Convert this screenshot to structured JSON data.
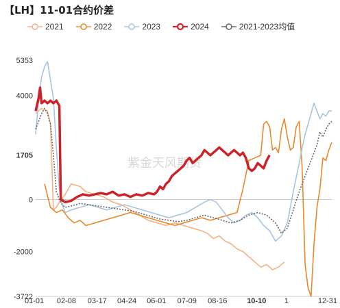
{
  "title": "【LH】11-01合约价差",
  "watermark": "紫金天风期货",
  "colors": {
    "s2021": "#f4b183",
    "s2022": "#e8892b",
    "s2023": "#a9c4dd",
    "s2024": "#cc2229",
    "avg": "#666666",
    "highlight": "#cc2229"
  },
  "chart_data": {
    "type": "line",
    "title": "【LH】11-01合约价差",
    "xlabel": "",
    "ylabel": "",
    "ylim": [
      -3722,
      5353
    ],
    "y_ticks": [
      {
        "value": 5353,
        "label": "5353"
      },
      {
        "value": 4000,
        "label": "4000"
      },
      {
        "value": 1705,
        "label": "1705",
        "highlight": true
      },
      {
        "value": 0,
        "label": "0"
      },
      {
        "value": -2000,
        "label": "-2000"
      },
      {
        "value": -3722,
        "label": "-3722"
      }
    ],
    "x_ticks": [
      {
        "pos": 0.0,
        "label": "01-01"
      },
      {
        "pos": 0.104,
        "label": "02-08"
      },
      {
        "pos": 0.208,
        "label": "03-17"
      },
      {
        "pos": 0.308,
        "label": "04-24"
      },
      {
        "pos": 0.408,
        "label": "06-01"
      },
      {
        "pos": 0.511,
        "label": "07-09"
      },
      {
        "pos": 0.614,
        "label": "08-16"
      },
      {
        "pos": 0.746,
        "label": "10-10",
        "highlight": true
      },
      {
        "pos": 0.847,
        "label": "1"
      },
      {
        "pos": 1.0,
        "label": "12-31"
      }
    ],
    "legend_position": "top",
    "series": [
      {
        "name": "2021",
        "key": "s2021",
        "points": [
          [
            0.0,
            3300
          ],
          [
            0.02,
            3500
          ],
          [
            0.04,
            3400
          ],
          [
            0.05,
            2900
          ],
          [
            0.06,
            -400
          ],
          [
            0.07,
            -300
          ],
          [
            0.08,
            -100
          ],
          [
            0.1,
            200
          ],
          [
            0.12,
            600
          ],
          [
            0.15,
            500
          ],
          [
            0.17,
            300
          ],
          [
            0.2,
            200
          ],
          [
            0.23,
            100
          ],
          [
            0.26,
            -100
          ],
          [
            0.29,
            -200
          ],
          [
            0.32,
            -400
          ],
          [
            0.35,
            -600
          ],
          [
            0.38,
            -800
          ],
          [
            0.41,
            -900
          ],
          [
            0.44,
            -1000
          ],
          [
            0.47,
            -900
          ],
          [
            0.5,
            -1000
          ],
          [
            0.53,
            -1100
          ],
          [
            0.56,
            -1200
          ],
          [
            0.58,
            -1300
          ],
          [
            0.6,
            -1500
          ],
          [
            0.62,
            -1400
          ],
          [
            0.64,
            -1600
          ],
          [
            0.66,
            -1700
          ],
          [
            0.68,
            -1900
          ],
          [
            0.7,
            -2000
          ],
          [
            0.72,
            -2200
          ],
          [
            0.74,
            -2400
          ],
          [
            0.76,
            -2600
          ],
          [
            0.78,
            -2500
          ],
          [
            0.8,
            -2700
          ],
          [
            0.82,
            -2600
          ],
          [
            0.84,
            -2400
          ]
        ]
      },
      {
        "name": "2022",
        "key": "s2022",
        "points": [
          [
            0.03,
            600
          ],
          [
            0.05,
            -300
          ],
          [
            0.07,
            -500
          ],
          [
            0.09,
            -400
          ],
          [
            0.11,
            -700
          ],
          [
            0.13,
            -900
          ],
          [
            0.15,
            -800
          ],
          [
            0.17,
            -1000
          ],
          [
            0.2,
            -900
          ],
          [
            0.23,
            -800
          ],
          [
            0.26,
            -700
          ],
          [
            0.29,
            -600
          ],
          [
            0.32,
            -500
          ],
          [
            0.35,
            -600
          ],
          [
            0.38,
            -700
          ],
          [
            0.41,
            -800
          ],
          [
            0.44,
            -900
          ],
          [
            0.47,
            -1000
          ],
          [
            0.5,
            -900
          ],
          [
            0.53,
            -800
          ],
          [
            0.56,
            -700
          ],
          [
            0.59,
            -800
          ],
          [
            0.62,
            -700
          ],
          [
            0.65,
            -600
          ],
          [
            0.68,
            -500
          ],
          [
            0.7,
            400
          ],
          [
            0.72,
            1500
          ],
          [
            0.74,
            1600
          ],
          [
            0.76,
            1700
          ],
          [
            0.77,
            2900
          ],
          [
            0.78,
            3000
          ],
          [
            0.79,
            2800
          ],
          [
            0.8,
            1900
          ],
          [
            0.81,
            2000
          ],
          [
            0.82,
            1800
          ],
          [
            0.83,
            2700
          ],
          [
            0.84,
            3100
          ],
          [
            0.85,
            2400
          ],
          [
            0.86,
            1900
          ],
          [
            0.87,
            2000
          ],
          [
            0.88,
            2800
          ],
          [
            0.89,
            3000
          ],
          [
            0.9,
            1200
          ],
          [
            0.91,
            -2500
          ],
          [
            0.92,
            -3400
          ],
          [
            0.93,
            -3722
          ],
          [
            0.94,
            -1700
          ],
          [
            0.95,
            -300
          ],
          [
            0.96,
            400
          ],
          [
            0.97,
            1600
          ],
          [
            0.98,
            1500
          ],
          [
            0.99,
            1900
          ],
          [
            1.0,
            2200
          ]
        ]
      },
      {
        "name": "2023",
        "key": "s2023",
        "points": [
          [
            0.0,
            2500
          ],
          [
            0.01,
            3800
          ],
          [
            0.02,
            4700
          ],
          [
            0.03,
            5100
          ],
          [
            0.04,
            5300
          ],
          [
            0.05,
            4600
          ],
          [
            0.06,
            3900
          ],
          [
            0.07,
            2000
          ],
          [
            0.08,
            400
          ],
          [
            0.09,
            -200
          ],
          [
            0.1,
            -500
          ],
          [
            0.12,
            -400
          ],
          [
            0.15,
            -300
          ],
          [
            0.18,
            -200
          ],
          [
            0.21,
            -300
          ],
          [
            0.24,
            -400
          ],
          [
            0.27,
            -300
          ],
          [
            0.3,
            -200
          ],
          [
            0.33,
            -300
          ],
          [
            0.36,
            -400
          ],
          [
            0.39,
            -500
          ],
          [
            0.42,
            -600
          ],
          [
            0.45,
            -700
          ],
          [
            0.48,
            -600
          ],
          [
            0.51,
            -500
          ],
          [
            0.54,
            -300
          ],
          [
            0.57,
            -100
          ],
          [
            0.59,
            0
          ],
          [
            0.61,
            -100
          ],
          [
            0.63,
            -400
          ],
          [
            0.65,
            -700
          ],
          [
            0.67,
            -900
          ],
          [
            0.69,
            -800
          ],
          [
            0.71,
            -600
          ],
          [
            0.73,
            -500
          ],
          [
            0.75,
            -700
          ],
          [
            0.77,
            -1000
          ],
          [
            0.79,
            -1200
          ],
          [
            0.81,
            -1600
          ],
          [
            0.83,
            -1400
          ],
          [
            0.85,
            -900
          ],
          [
            0.87,
            300
          ],
          [
            0.89,
            1400
          ],
          [
            0.9,
            2000
          ],
          [
            0.91,
            2500
          ],
          [
            0.92,
            2900
          ],
          [
            0.93,
            3300
          ],
          [
            0.94,
            3700
          ],
          [
            0.95,
            3400
          ],
          [
            0.96,
            3100
          ],
          [
            0.97,
            3300
          ],
          [
            0.98,
            3200
          ],
          [
            0.99,
            3400
          ],
          [
            1.0,
            3400
          ]
        ]
      },
      {
        "name": "2024",
        "key": "s2024",
        "points": [
          [
            0.0,
            3400
          ],
          [
            0.01,
            3900
          ],
          [
            0.015,
            4300
          ],
          [
            0.02,
            3700
          ],
          [
            0.03,
            3800
          ],
          [
            0.04,
            3700
          ],
          [
            0.05,
            3800
          ],
          [
            0.06,
            3700
          ],
          [
            0.07,
            3800
          ],
          [
            0.075,
            3700
          ],
          [
            0.08,
            3600
          ],
          [
            0.085,
            0
          ],
          [
            0.1,
            -100
          ],
          [
            0.12,
            -50
          ],
          [
            0.14,
            100
          ],
          [
            0.16,
            200
          ],
          [
            0.18,
            150
          ],
          [
            0.2,
            200
          ],
          [
            0.22,
            250
          ],
          [
            0.24,
            200
          ],
          [
            0.26,
            300
          ],
          [
            0.28,
            150
          ],
          [
            0.3,
            200
          ],
          [
            0.32,
            100
          ],
          [
            0.34,
            200
          ],
          [
            0.36,
            150
          ],
          [
            0.38,
            250
          ],
          [
            0.4,
            200
          ],
          [
            0.41,
            300
          ],
          [
            0.42,
            500
          ],
          [
            0.43,
            400
          ],
          [
            0.44,
            600
          ],
          [
            0.45,
            700
          ],
          [
            0.46,
            900
          ],
          [
            0.47,
            1000
          ],
          [
            0.48,
            1100
          ],
          [
            0.49,
            1200
          ],
          [
            0.5,
            1300
          ],
          [
            0.51,
            1500
          ],
          [
            0.52,
            1600
          ],
          [
            0.53,
            1400
          ],
          [
            0.54,
            1500
          ],
          [
            0.55,
            1600
          ],
          [
            0.56,
            1700
          ],
          [
            0.57,
            1900
          ],
          [
            0.58,
            1800
          ],
          [
            0.59,
            1700
          ],
          [
            0.6,
            1800
          ],
          [
            0.61,
            1900
          ],
          [
            0.62,
            2000
          ],
          [
            0.63,
            1900
          ],
          [
            0.64,
            1800
          ],
          [
            0.65,
            1700
          ],
          [
            0.66,
            1800
          ],
          [
            0.67,
            1900
          ],
          [
            0.68,
            1800
          ],
          [
            0.69,
            1700
          ],
          [
            0.7,
            1800
          ],
          [
            0.71,
            1600
          ],
          [
            0.72,
            1200
          ],
          [
            0.73,
            1100
          ],
          [
            0.74,
            1200
          ],
          [
            0.75,
            1400
          ],
          [
            0.76,
            1300
          ],
          [
            0.77,
            1200
          ],
          [
            0.78,
            1500
          ],
          [
            0.79,
            1705
          ]
        ]
      },
      {
        "name": "2021-2023均值",
        "key": "avg",
        "points": [
          [
            0.0,
            2700
          ],
          [
            0.01,
            3000
          ],
          [
            0.02,
            3300
          ],
          [
            0.03,
            3500
          ],
          [
            0.04,
            3300
          ],
          [
            0.05,
            2900
          ],
          [
            0.06,
            1700
          ],
          [
            0.07,
            300
          ],
          [
            0.08,
            0
          ],
          [
            0.09,
            -200
          ],
          [
            0.1,
            -300
          ],
          [
            0.12,
            -250
          ],
          [
            0.15,
            -150
          ],
          [
            0.18,
            -200
          ],
          [
            0.21,
            -250
          ],
          [
            0.24,
            -300
          ],
          [
            0.27,
            -350
          ],
          [
            0.3,
            -400
          ],
          [
            0.33,
            -450
          ],
          [
            0.36,
            -550
          ],
          [
            0.39,
            -650
          ],
          [
            0.42,
            -750
          ],
          [
            0.45,
            -800
          ],
          [
            0.48,
            -850
          ],
          [
            0.51,
            -800
          ],
          [
            0.54,
            -700
          ],
          [
            0.57,
            -600
          ],
          [
            0.6,
            -700
          ],
          [
            0.63,
            -800
          ],
          [
            0.66,
            -900
          ],
          [
            0.69,
            -800
          ],
          [
            0.72,
            -600
          ],
          [
            0.75,
            -500
          ],
          [
            0.78,
            -600
          ],
          [
            0.81,
            -900
          ],
          [
            0.83,
            -1300
          ],
          [
            0.85,
            -1100
          ],
          [
            0.87,
            -400
          ],
          [
            0.89,
            300
          ],
          [
            0.91,
            900
          ],
          [
            0.93,
            1500
          ],
          [
            0.95,
            2100
          ],
          [
            0.96,
            2600
          ],
          [
            0.97,
            2400
          ],
          [
            0.98,
            2700
          ],
          [
            0.99,
            2900
          ],
          [
            1.0,
            3000
          ]
        ]
      }
    ]
  }
}
